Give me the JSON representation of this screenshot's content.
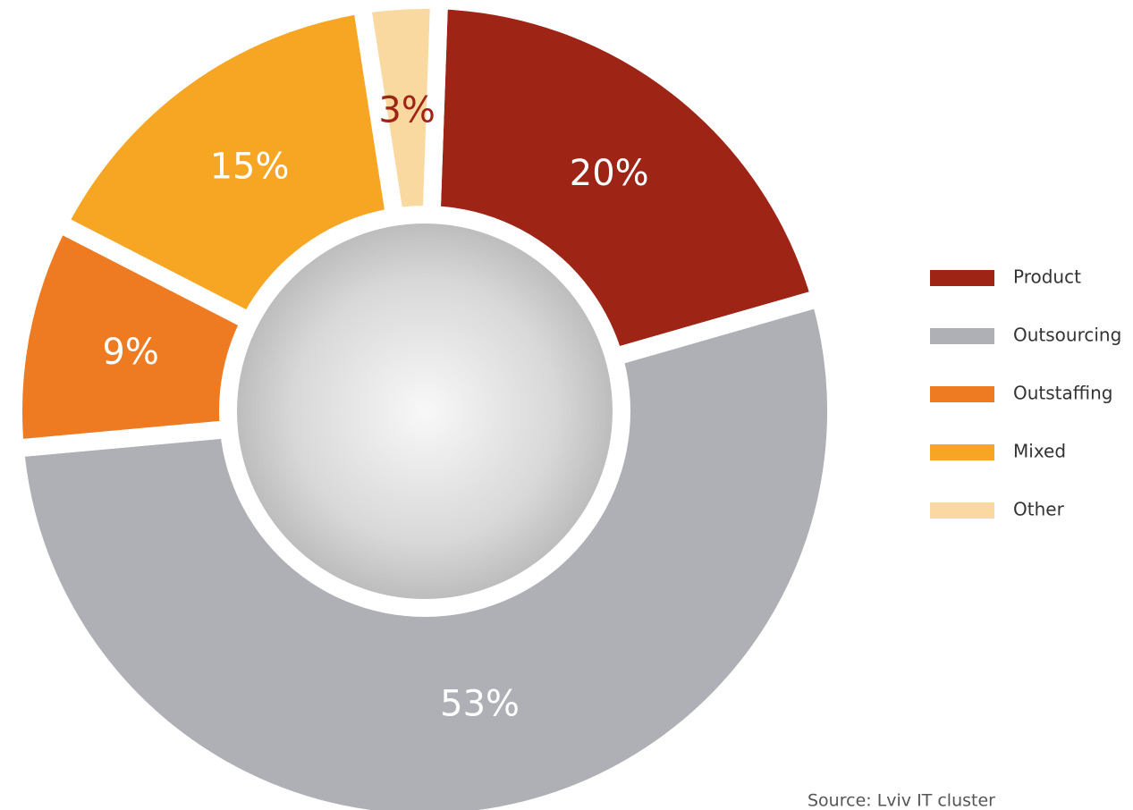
{
  "chart_data": {
    "type": "donut",
    "categories": [
      "Product",
      "Outsourcing",
      "Outstaffing",
      "Mixed",
      "Other"
    ],
    "values": [
      20,
      53,
      9,
      15,
      3
    ],
    "value_labels": [
      "20%",
      "53%",
      "9%",
      "15%",
      "3%"
    ],
    "colors": [
      "#9e2416",
      "#aeb0b6",
      "#ee7a22",
      "#f6a623",
      "#fad9a0"
    ],
    "label_colors": [
      "#ffffff",
      "#ffffff",
      "#ffffff",
      "#ffffff",
      "#9e2416"
    ],
    "source": "Source: Lviv IT cluster"
  }
}
